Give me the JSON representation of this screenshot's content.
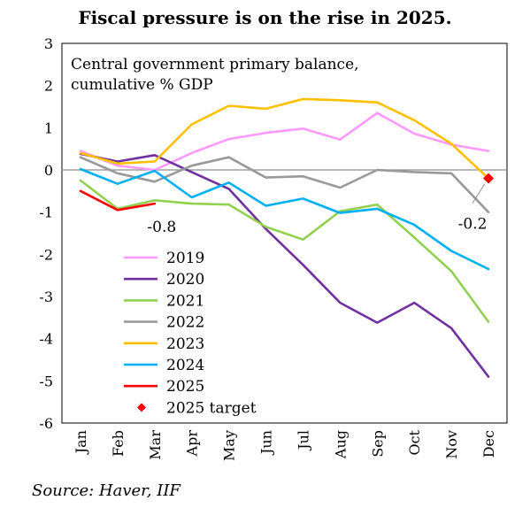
{
  "title": "Fiscal pressure is on the rise in 2025.",
  "source": "Source: Haver, IIF",
  "chart_data": {
    "type": "line",
    "subtitle_lines": [
      "Central government primary balance,",
      "cumulative % GDP"
    ],
    "categories": [
      "Jan",
      "Feb",
      "Mar",
      "Apr",
      "May",
      "Jun",
      "Jul",
      "Aug",
      "Sep",
      "Oct",
      "Nov",
      "Dec"
    ],
    "ylim": [
      -6,
      3
    ],
    "yticks": [
      3,
      2,
      1,
      0,
      -1,
      -2,
      -3,
      -4,
      -5,
      -6
    ],
    "grid": false,
    "legend_position": "left-center",
    "series": [
      {
        "name": "2019",
        "color": "#FF99FF",
        "values": [
          0.45,
          0.1,
          0.0,
          0.4,
          0.73,
          0.88,
          0.98,
          0.72,
          1.35,
          0.86,
          0.6,
          0.45
        ]
      },
      {
        "name": "2020",
        "color": "#7030A0",
        "values": [
          0.38,
          0.2,
          0.35,
          -0.05,
          -0.45,
          -1.4,
          -2.25,
          -3.15,
          -3.62,
          -3.15,
          -3.75,
          -4.9
        ]
      },
      {
        "name": "2021",
        "color": "#92D050",
        "values": [
          -0.25,
          -0.92,
          -0.72,
          -0.8,
          -0.82,
          -1.35,
          -1.65,
          -0.98,
          -0.82,
          -1.6,
          -2.4,
          -3.6
        ]
      },
      {
        "name": "2022",
        "color": "#999999",
        "values": [
          0.3,
          -0.08,
          -0.28,
          0.1,
          0.3,
          -0.18,
          -0.15,
          -0.42,
          0.0,
          -0.05,
          -0.08,
          -1.0
        ]
      },
      {
        "name": "2023",
        "color": "#FFC000",
        "values": [
          0.4,
          0.15,
          0.2,
          1.08,
          1.52,
          1.45,
          1.68,
          1.65,
          1.6,
          1.18,
          0.62,
          -0.2
        ]
      },
      {
        "name": "2024",
        "color": "#00B0F0",
        "values": [
          0.02,
          -0.33,
          -0.02,
          -0.65,
          -0.3,
          -0.85,
          -0.68,
          -1.02,
          -0.92,
          -1.3,
          -1.92,
          -2.35
        ]
      },
      {
        "name": "2025",
        "color": "#FF0000",
        "values": [
          -0.5,
          -0.95,
          -0.8,
          null,
          null,
          null,
          null,
          null,
          null,
          null,
          null,
          null
        ]
      }
    ],
    "target": {
      "name": "2025 target",
      "color": "#FF0000",
      "category": "Dec",
      "value": -0.2
    },
    "annotations": [
      {
        "text": "-0.8",
        "category": "Mar",
        "value": -0.8
      },
      {
        "text": "-0.2",
        "category": "Dec",
        "value": -0.2
      }
    ]
  }
}
